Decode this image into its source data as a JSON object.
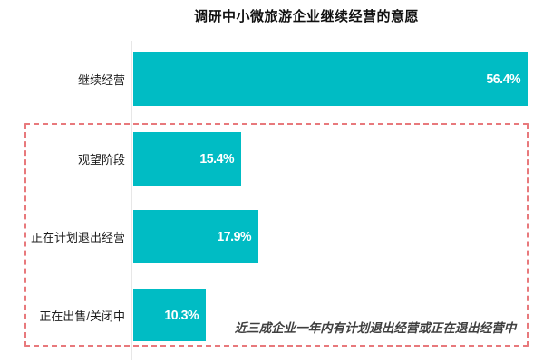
{
  "chart": {
    "title": "调研中小微旅游企业继续经营的意愿",
    "annotation": "近三成企业一年内有计划退出经营或正在退出经营中"
  },
  "chart_data": {
    "type": "bar",
    "orientation": "horizontal",
    "title": "调研中小微旅游企业继续经营的意愿",
    "categories": [
      "继续经营",
      "观望阶段",
      "正在计划退出经营",
      "正在出售/关闭中"
    ],
    "values": [
      56.4,
      15.4,
      17.9,
      10.3
    ],
    "value_labels": [
      "56.4%",
      "15.4%",
      "17.9%",
      "10.3%"
    ],
    "xlabel": "",
    "ylabel": "",
    "xlim": [
      0,
      58
    ],
    "grid": false,
    "legend": false,
    "bar_color": "#00bcc4",
    "value_label_color": "#ffffff",
    "highlight_box": {
      "style": "dashed",
      "color": "#e8797c",
      "enclosed_categories": [
        "观望阶段",
        "正在计划退出经营",
        "正在出售/关闭中"
      ],
      "annotation": "近三成企业一年内有计划退出经营或正在退出经营中"
    }
  }
}
